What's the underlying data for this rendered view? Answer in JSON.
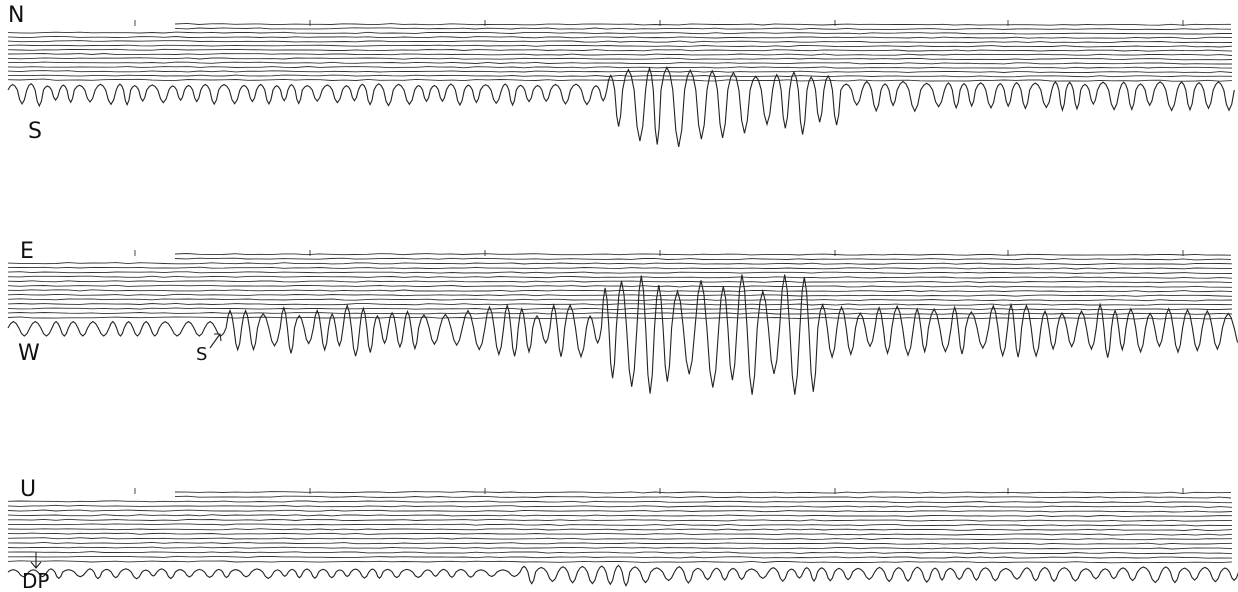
{
  "panels": [
    {
      "top_label": "N",
      "bottom_label": "S"
    },
    {
      "top_label": "E",
      "bottom_label": "W",
      "marker": "S"
    },
    {
      "top_label": "U",
      "marker": "DP"
    }
  ]
}
